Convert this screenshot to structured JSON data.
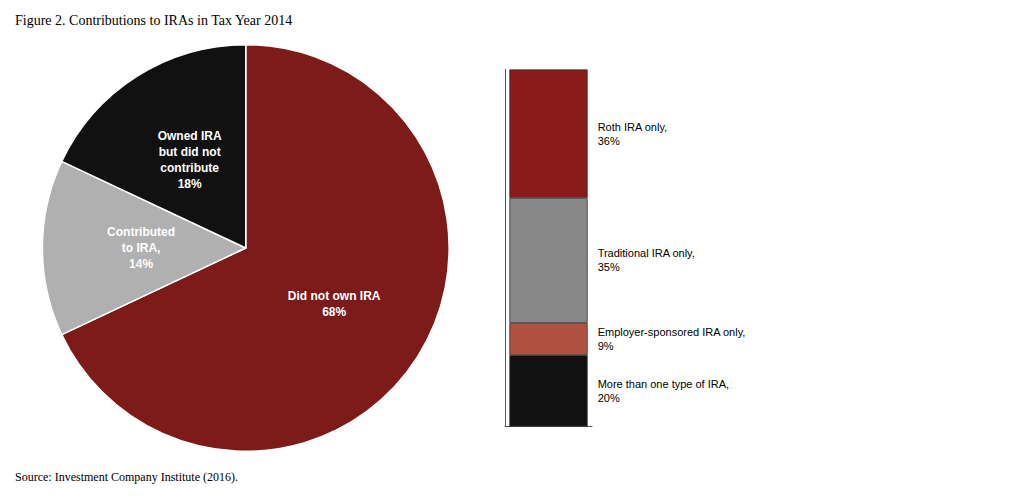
{
  "chart_data": [
    {
      "type": "pie",
      "title": "Figure 2. Contributions to IRAs in Tax Year 2014",
      "annotations": [
        "Source: Investment Company Institute (2016)."
      ],
      "categories": [
        "Did not own IRA",
        "Contributed\nto IRA,",
        "Owned IRA\nbut did not\ncontribute"
      ],
      "values": [
        68,
        14,
        18
      ],
      "value_labels": [
        "68%",
        "14%",
        "18%"
      ],
      "colors": [
        "#7D1A1A",
        "#B0B0B0",
        "#111111"
      ],
      "data_labels": true
    },
    {
      "type": "bar",
      "stacked": true,
      "categories": [
        null
      ],
      "series": [
        {
          "name": "More than one type of IRA,",
          "color": "#111111",
          "values": [
            20
          ],
          "value_labels": [
            "20%"
          ]
        },
        {
          "name": "Employer-sponsored IRA only,",
          "color": "#B05040",
          "values": [
            9
          ],
          "value_labels": [
            "9%"
          ]
        },
        {
          "name": "Traditional IRA only,",
          "color": "#888888",
          "values": [
            35
          ],
          "value_labels": [
            "35%"
          ]
        },
        {
          "name": "Roth IRA only,",
          "color": "#8B1A1A",
          "values": [
            36
          ],
          "value_labels": [
            "36%"
          ]
        }
      ],
      "ylim": [
        0,
        100
      ],
      "yticks": [],
      "tick_labels": false,
      "grid": false,
      "data_labels": true
    }
  ]
}
